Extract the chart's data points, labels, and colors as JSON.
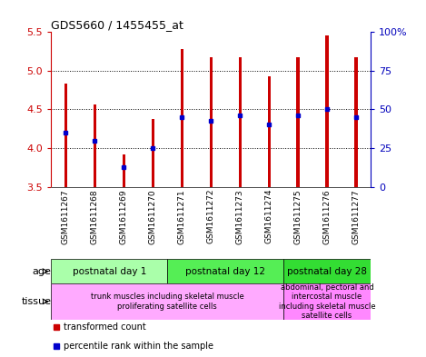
{
  "title": "GDS5660 / 1455455_at",
  "samples": [
    "GSM1611267",
    "GSM1611268",
    "GSM1611269",
    "GSM1611270",
    "GSM1611271",
    "GSM1611272",
    "GSM1611273",
    "GSM1611274",
    "GSM1611275",
    "GSM1611276",
    "GSM1611277"
  ],
  "transformed_count": [
    4.83,
    4.57,
    3.92,
    4.38,
    5.28,
    5.17,
    5.18,
    4.93,
    5.17,
    5.46,
    5.17
  ],
  "percentile_rank": [
    4.2,
    4.1,
    3.75,
    4.0,
    4.4,
    4.35,
    4.42,
    4.3,
    4.42,
    4.5,
    4.4
  ],
  "ylim": [
    3.5,
    5.5
  ],
  "yticks": [
    3.5,
    4.0,
    4.5,
    5.0,
    5.5
  ],
  "y2tick_labels": [
    "0",
    "25",
    "50",
    "75",
    "100%"
  ],
  "y2tick_positions": [
    3.5,
    4.0,
    4.5,
    5.0,
    5.5
  ],
  "bar_color": "#cc0000",
  "dot_color": "#0000cc",
  "age_groups": [
    {
      "label": "postnatal day 1",
      "start": 0,
      "end": 4,
      "color": "#aaffaa"
    },
    {
      "label": "postnatal day 12",
      "start": 4,
      "end": 8,
      "color": "#55ee55"
    },
    {
      "label": "postnatal day 28",
      "start": 8,
      "end": 11,
      "color": "#33dd33"
    }
  ],
  "tissue_groups": [
    {
      "label": "trunk muscles including skeletal muscle\nproliferating satellite cells",
      "start": 0,
      "end": 8,
      "color": "#ffaaff"
    },
    {
      "label": "abdominal, pectoral and\nintercostal muscle\nincluding skeletal muscle\nsatellite cells",
      "start": 8,
      "end": 11,
      "color": "#ff88ff"
    }
  ],
  "age_label": "age",
  "tissue_label": "tissue",
  "legend_items": [
    {
      "label": "transformed count",
      "color": "#cc0000"
    },
    {
      "label": "percentile rank within the sample",
      "color": "#0000cc"
    }
  ],
  "grid_color": "#000000",
  "yaxis_color": "#cc0000",
  "y2axis_color": "#0000bb",
  "bg_color": "#ffffff",
  "sample_bg_color": "#c8c8c8",
  "bar_width": 0.1
}
